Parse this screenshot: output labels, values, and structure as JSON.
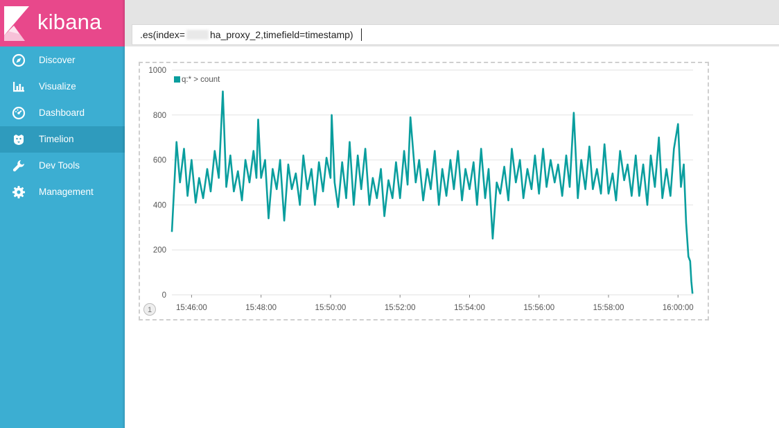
{
  "app": {
    "name": "kibana"
  },
  "sidebar": {
    "items": [
      {
        "label": "Discover",
        "icon": "compass-icon"
      },
      {
        "label": "Visualize",
        "icon": "bar-chart-icon"
      },
      {
        "label": "Dashboard",
        "icon": "gauge-icon"
      },
      {
        "label": "Timelion",
        "icon": "timelion-icon",
        "active": true
      },
      {
        "label": "Dev Tools",
        "icon": "wrench-icon"
      },
      {
        "label": "Management",
        "icon": "gear-icon"
      }
    ]
  },
  "query": {
    "prefix": ".es(index=",
    "suffix": "ha_proxy_2,timefield=timestamp)"
  },
  "chart_page": "1",
  "colors": {
    "sidebar": "#3caed2",
    "logo": "#e8488b",
    "active": "#2f9bbd",
    "series": "#0a9e9e"
  },
  "chart_data": {
    "type": "line",
    "series": [
      {
        "name": "q:* > count"
      }
    ],
    "legend": "top-left",
    "yticks": [
      "0",
      "200",
      "400",
      "600",
      "800",
      "1000"
    ],
    "ylim": [
      0,
      1000
    ],
    "xticks": [
      "15:46:00",
      "15:48:00",
      "15:50:00",
      "15:52:00",
      "15:54:00",
      "15:56:00",
      "15:58:00",
      "16:00:00"
    ],
    "xlim": [
      "15:45:26",
      "16:00:26"
    ],
    "grid": true,
    "points": [
      [
        "15:45:26",
        280
      ],
      [
        "15:45:34",
        680
      ],
      [
        "15:45:40",
        500
      ],
      [
        "15:45:47",
        650
      ],
      [
        "15:45:53",
        440
      ],
      [
        "15:46:00",
        600
      ],
      [
        "15:46:07",
        410
      ],
      [
        "15:46:13",
        520
      ],
      [
        "15:46:20",
        430
      ],
      [
        "15:46:27",
        560
      ],
      [
        "15:46:33",
        460
      ],
      [
        "15:46:40",
        640
      ],
      [
        "15:46:47",
        520
      ],
      [
        "15:46:54",
        905
      ],
      [
        "15:47:00",
        480
      ],
      [
        "15:47:07",
        620
      ],
      [
        "15:47:13",
        460
      ],
      [
        "15:47:20",
        550
      ],
      [
        "15:47:27",
        420
      ],
      [
        "15:47:33",
        600
      ],
      [
        "15:47:40",
        500
      ],
      [
        "15:47:47",
        640
      ],
      [
        "15:47:52",
        520
      ],
      [
        "15:47:55",
        780
      ],
      [
        "15:48:00",
        520
      ],
      [
        "15:48:07",
        600
      ],
      [
        "15:48:13",
        340
      ],
      [
        "15:48:20",
        560
      ],
      [
        "15:48:27",
        470
      ],
      [
        "15:48:33",
        600
      ],
      [
        "15:48:40",
        330
      ],
      [
        "15:48:47",
        580
      ],
      [
        "15:48:53",
        470
      ],
      [
        "15:49:00",
        540
      ],
      [
        "15:49:07",
        400
      ],
      [
        "15:49:13",
        620
      ],
      [
        "15:49:20",
        470
      ],
      [
        "15:49:27",
        560
      ],
      [
        "15:49:33",
        400
      ],
      [
        "15:49:40",
        590
      ],
      [
        "15:49:47",
        460
      ],
      [
        "15:49:53",
        610
      ],
      [
        "15:50:00",
        520
      ],
      [
        "15:50:02",
        800
      ],
      [
        "15:50:07",
        500
      ],
      [
        "15:50:13",
        390
      ],
      [
        "15:50:20",
        590
      ],
      [
        "15:50:27",
        430
      ],
      [
        "15:50:33",
        680
      ],
      [
        "15:50:40",
        400
      ],
      [
        "15:50:47",
        620
      ],
      [
        "15:50:53",
        470
      ],
      [
        "15:51:00",
        650
      ],
      [
        "15:51:07",
        400
      ],
      [
        "15:51:13",
        520
      ],
      [
        "15:51:20",
        430
      ],
      [
        "15:51:27",
        560
      ],
      [
        "15:51:33",
        350
      ],
      [
        "15:51:40",
        510
      ],
      [
        "15:51:47",
        430
      ],
      [
        "15:51:53",
        590
      ],
      [
        "15:52:00",
        430
      ],
      [
        "15:52:07",
        640
      ],
      [
        "15:52:13",
        490
      ],
      [
        "15:52:18",
        790
      ],
      [
        "15:52:27",
        500
      ],
      [
        "15:52:33",
        600
      ],
      [
        "15:52:40",
        420
      ],
      [
        "15:52:47",
        560
      ],
      [
        "15:52:53",
        470
      ],
      [
        "15:53:00",
        640
      ],
      [
        "15:53:07",
        400
      ],
      [
        "15:53:13",
        560
      ],
      [
        "15:53:20",
        440
      ],
      [
        "15:53:27",
        600
      ],
      [
        "15:53:33",
        470
      ],
      [
        "15:53:40",
        640
      ],
      [
        "15:53:47",
        420
      ],
      [
        "15:53:53",
        560
      ],
      [
        "15:54:00",
        470
      ],
      [
        "15:54:07",
        590
      ],
      [
        "15:54:13",
        400
      ],
      [
        "15:54:20",
        650
      ],
      [
        "15:54:27",
        430
      ],
      [
        "15:54:33",
        560
      ],
      [
        "15:54:40",
        250
      ],
      [
        "15:54:47",
        500
      ],
      [
        "15:54:53",
        450
      ],
      [
        "15:55:00",
        570
      ],
      [
        "15:55:07",
        420
      ],
      [
        "15:55:13",
        650
      ],
      [
        "15:55:20",
        500
      ],
      [
        "15:55:27",
        600
      ],
      [
        "15:55:33",
        430
      ],
      [
        "15:55:40",
        560
      ],
      [
        "15:55:47",
        470
      ],
      [
        "15:55:53",
        620
      ],
      [
        "15:56:00",
        450
      ],
      [
        "15:56:07",
        650
      ],
      [
        "15:56:13",
        480
      ],
      [
        "15:56:20",
        600
      ],
      [
        "15:56:27",
        500
      ],
      [
        "15:56:33",
        580
      ],
      [
        "15:56:40",
        440
      ],
      [
        "15:56:47",
        620
      ],
      [
        "15:56:53",
        480
      ],
      [
        "15:57:00",
        810
      ],
      [
        "15:57:07",
        430
      ],
      [
        "15:57:13",
        600
      ],
      [
        "15:57:20",
        470
      ],
      [
        "15:57:27",
        660
      ],
      [
        "15:57:33",
        470
      ],
      [
        "15:57:40",
        560
      ],
      [
        "15:57:47",
        450
      ],
      [
        "15:57:53",
        670
      ],
      [
        "15:58:00",
        450
      ],
      [
        "15:58:07",
        540
      ],
      [
        "15:58:13",
        420
      ],
      [
        "15:58:20",
        640
      ],
      [
        "15:58:27",
        510
      ],
      [
        "15:58:33",
        580
      ],
      [
        "15:58:40",
        440
      ],
      [
        "15:58:47",
        620
      ],
      [
        "15:58:53",
        440
      ],
      [
        "15:59:00",
        580
      ],
      [
        "15:59:07",
        400
      ],
      [
        "15:59:13",
        620
      ],
      [
        "15:59:20",
        480
      ],
      [
        "15:59:27",
        700
      ],
      [
        "15:59:33",
        430
      ],
      [
        "15:59:40",
        560
      ],
      [
        "15:59:47",
        440
      ],
      [
        "15:59:53",
        650
      ],
      [
        "16:00:00",
        760
      ],
      [
        "16:00:05",
        480
      ],
      [
        "16:00:10",
        580
      ],
      [
        "16:00:14",
        320
      ],
      [
        "16:00:18",
        170
      ],
      [
        "16:00:21",
        150
      ],
      [
        "16:00:23",
        60
      ],
      [
        "16:00:25",
        5
      ]
    ]
  }
}
